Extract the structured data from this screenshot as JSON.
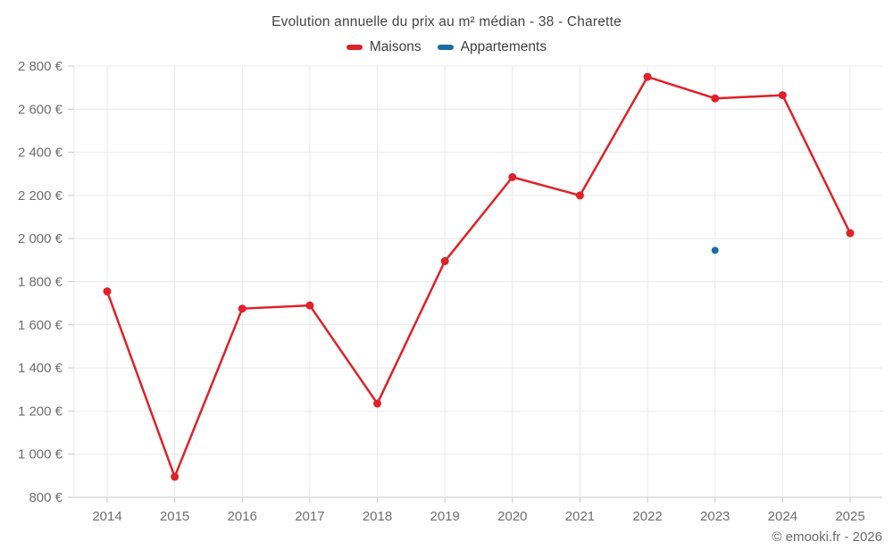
{
  "page": {
    "title": "Evolution annuelle du prix au m² médian - 38 - Charette"
  },
  "footer": {
    "credit": "© emooki.fr - 2026"
  },
  "chart_data": {
    "type": "line",
    "title": "Evolution annuelle du prix au m² médian - 38 - Charette",
    "categories": [
      "2014",
      "2015",
      "2016",
      "2017",
      "2018",
      "2019",
      "2020",
      "2021",
      "2022",
      "2023",
      "2024",
      "2025"
    ],
    "series": [
      {
        "name": "Maisons",
        "color": "#e02127",
        "values": [
          1755,
          895,
          1675,
          1690,
          1235,
          1895,
          2285,
          2200,
          2750,
          2650,
          2665,
          2025
        ]
      },
      {
        "name": "Appartements",
        "color": "#1b6ca5",
        "values": [
          null,
          null,
          null,
          null,
          null,
          null,
          null,
          null,
          null,
          1945,
          null,
          null
        ]
      }
    ],
    "ylabel": "",
    "xlabel": "",
    "ylim": [
      800,
      2800
    ],
    "ytick_step": 200,
    "ytick_suffix": "€",
    "grid": true,
    "legend_position": "top",
    "colors": {
      "gridline": "#e9e9e9",
      "axis_line": "#c9c9c9",
      "tick": "#c9c9c9",
      "axis_text": "#6e6e6e"
    }
  }
}
